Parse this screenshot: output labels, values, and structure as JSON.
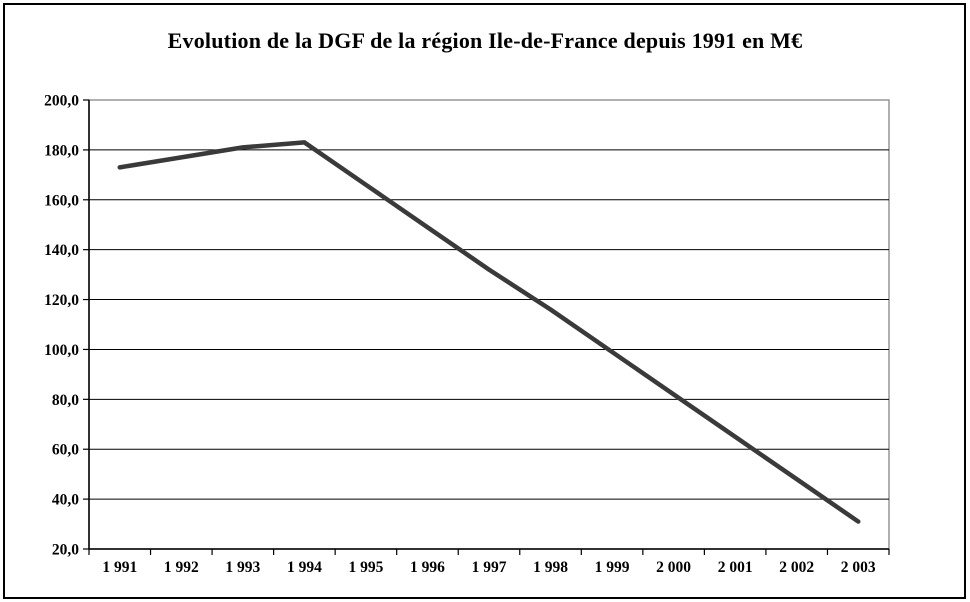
{
  "chart": {
    "title": "Evolution de la DGF de la région Ile-de-France depuis 1991 en M€"
  },
  "chart_data": {
    "type": "line",
    "title": "Evolution de la DGF de la région Ile-de-France depuis 1991 en M€",
    "categories": [
      "1 991",
      "1 992",
      "1 993",
      "1 994",
      "1 995",
      "1 996",
      "1 997",
      "1 998",
      "1 999",
      "2 000",
      "2 001",
      "2 002",
      "2 003"
    ],
    "years": [
      1991,
      1992,
      1993,
      1994,
      1995,
      1996,
      1997,
      1998,
      1999,
      2000,
      2001,
      2002,
      2003
    ],
    "series": [
      {
        "name": "DGF (M€)",
        "values": [
          173,
          177,
          181,
          183,
          166,
          149,
          132,
          116,
          99,
          82,
          65,
          48,
          31
        ]
      }
    ],
    "ylim": [
      20,
      200
    ],
    "yticks": [
      20,
      40,
      60,
      80,
      100,
      120,
      140,
      160,
      180,
      200
    ],
    "ytick_labels": [
      "20,0",
      "40,0",
      "60,0",
      "80,0",
      "100,0",
      "120,0",
      "140,0",
      "160,0",
      "180,0",
      "200,0"
    ],
    "xlabel": "",
    "ylabel": "",
    "grid": true,
    "legend_position": "none",
    "colors": {
      "series_line": "#3a3a3a",
      "gridline": "#000000",
      "plot_border": "#969696",
      "axis": "#000000",
      "background": "#ffffff",
      "text": "#000000"
    }
  }
}
